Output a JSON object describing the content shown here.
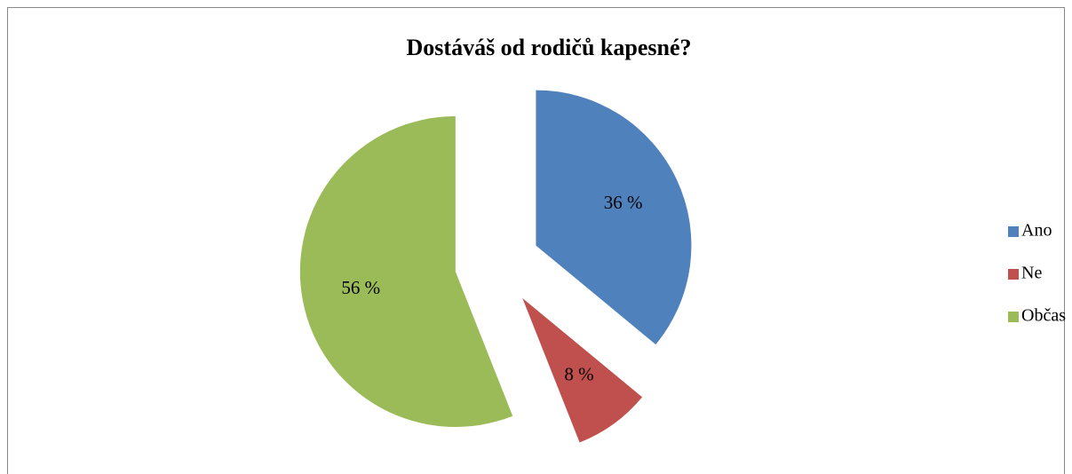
{
  "chart_data": {
    "type": "pie",
    "title": "Dostáváš od rodičů kapesné?",
    "categories": [
      "Ano",
      "Ne",
      "Občas"
    ],
    "values": [
      36,
      8,
      56
    ],
    "value_labels": [
      "36 %",
      "8 %",
      "56 %"
    ],
    "colors": [
      "#4f81bd",
      "#c0504d",
      "#9bbb59"
    ],
    "exploded": true,
    "legend": "right"
  }
}
